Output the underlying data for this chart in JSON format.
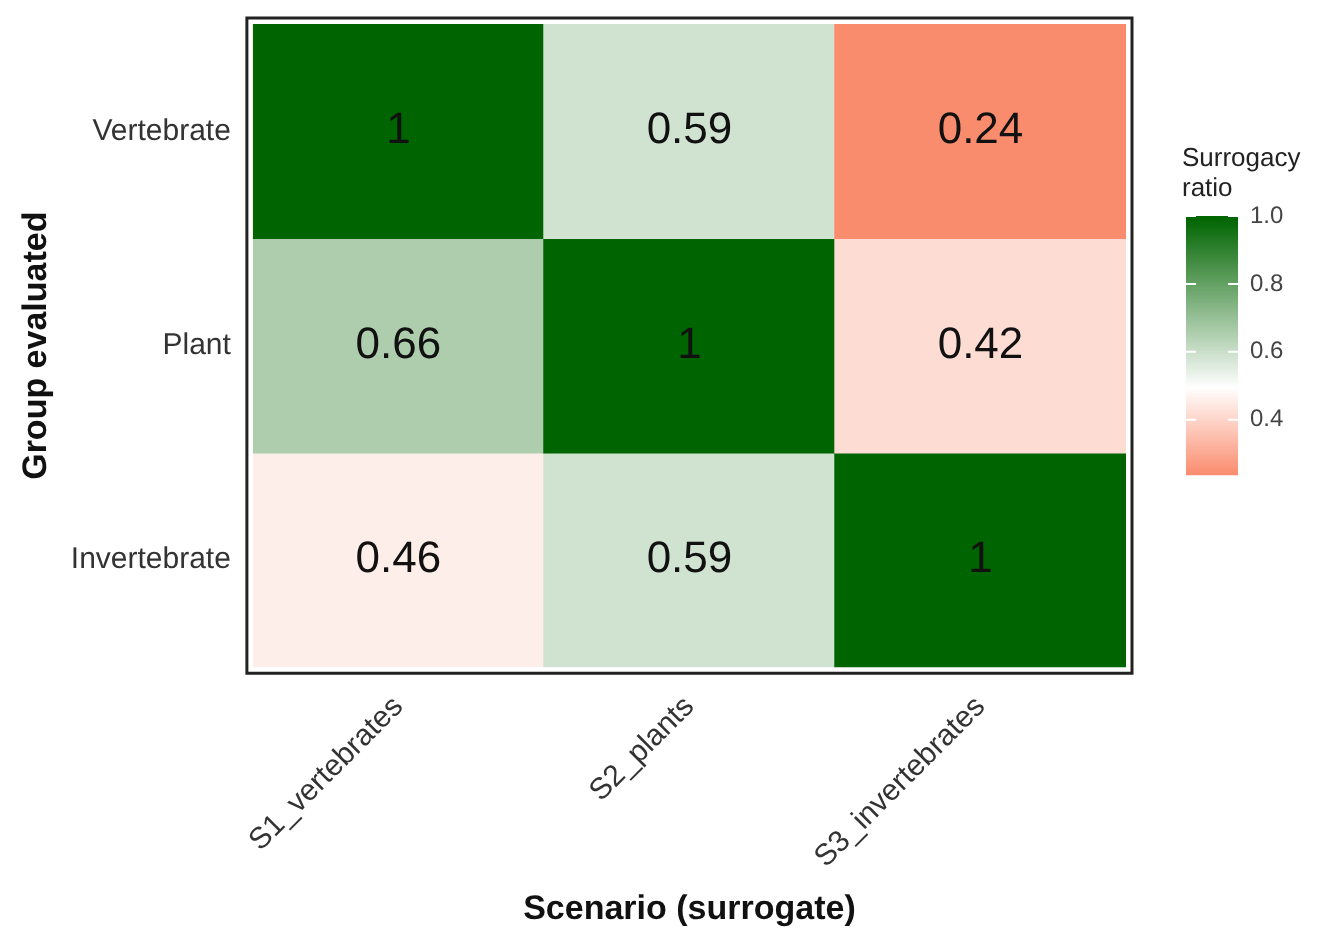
{
  "chart_data": {
    "type": "heatmap",
    "xlabel": "Scenario (surrogate)",
    "ylabel": "Group evaluated",
    "clabel": "Surrogacy ratio",
    "categories": [
      "S1_vertebrates",
      "S2_plants",
      "S3_invertebrates"
    ],
    "y_categories": [
      "Vertebrate",
      "Plant",
      "Invertebrate"
    ],
    "cells": [
      [
        1,
        0.59,
        0.24
      ],
      [
        0.66,
        1,
        0.42
      ],
      [
        0.46,
        0.59,
        1
      ]
    ],
    "clim": [
      0.24,
      1.0
    ],
    "cticks": [
      0.4,
      0.6,
      0.8,
      {
        "value": 1.0,
        "label": "1.0"
      }
    ],
    "data_labels": true
  }
}
